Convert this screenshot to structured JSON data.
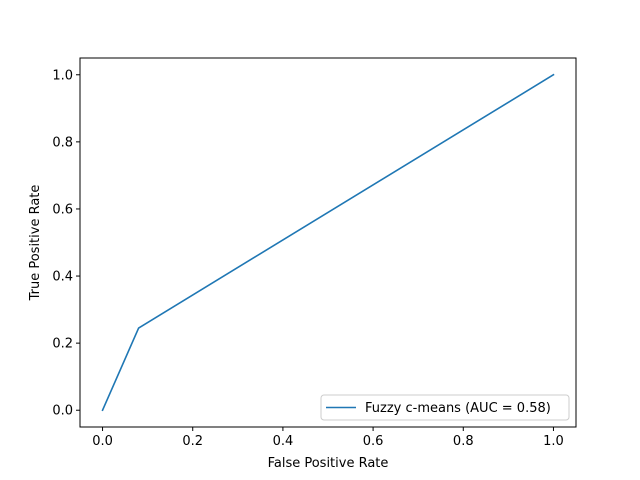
{
  "chart_data": {
    "type": "line",
    "title": "",
    "xlabel": "False Positive Rate",
    "ylabel": "True Positive Rate",
    "xlim": [
      -0.05,
      1.05
    ],
    "ylim": [
      -0.05,
      1.05
    ],
    "xticks": [
      "0.0",
      "0.2",
      "0.4",
      "0.6",
      "0.8",
      "1.0"
    ],
    "yticks": [
      "0.0",
      "0.2",
      "0.4",
      "0.6",
      "0.8",
      "1.0"
    ],
    "grid": false,
    "legend_position": "lower-right",
    "series": [
      {
        "name": "Fuzzy c-means (AUC = 0.58)",
        "color": "#1f77b4",
        "x": [
          0.0,
          0.08,
          1.0
        ],
        "y": [
          0.0,
          0.245,
          1.0
        ]
      }
    ]
  }
}
